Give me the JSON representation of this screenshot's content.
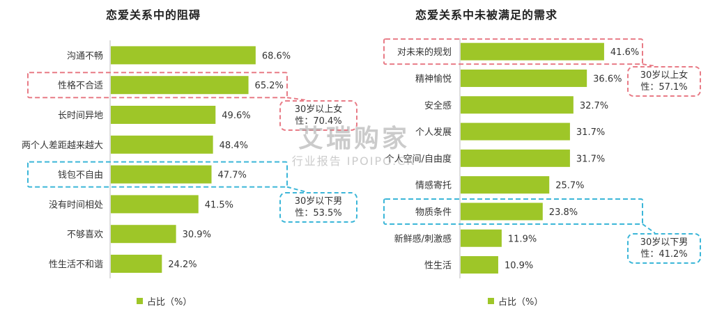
{
  "chart_data": [
    {
      "type": "bar",
      "orientation": "horizontal",
      "title": "恋爱关系中的阻碍",
      "categories": [
        "沟通不畅",
        "性格不合适",
        "长时间异地",
        "两个人差距越来越大",
        "钱包不自由",
        "没有时间相处",
        "不够喜欢",
        "性生活不和谐"
      ],
      "values": [
        68.6,
        65.2,
        49.6,
        48.4,
        47.7,
        41.5,
        30.9,
        24.2
      ],
      "value_labels": [
        "68.6%",
        "65.2%",
        "49.6%",
        "48.4%",
        "47.7%",
        "41.5%",
        "30.9%",
        "24.2%"
      ],
      "legend": "占比（%）",
      "bar_color": "#9ec628",
      "highlights": [
        {
          "category_index": 1,
          "color": "#e87b86",
          "line1": "30岁以上女",
          "line2": "性：70.4%"
        },
        {
          "category_index": 4,
          "color": "#3bb6d8",
          "line1": "30岁以下男",
          "line2": "性：53.5%"
        }
      ]
    },
    {
      "type": "bar",
      "orientation": "horizontal",
      "title": "恋爱关系中未被满足的需求",
      "categories": [
        "对未来的规划",
        "精神愉悦",
        "安全感",
        "个人发展",
        "个人空间/自由度",
        "情感寄托",
        "物质条件",
        "新鲜感/刺激感",
        "性生活"
      ],
      "values": [
        41.6,
        36.6,
        32.7,
        31.7,
        31.7,
        25.7,
        23.8,
        11.9,
        10.9
      ],
      "value_labels": [
        "41.6%",
        "36.6%",
        "32.7%",
        "31.7%",
        "31.7%",
        "25.7%",
        "23.8%",
        "11.9%",
        "10.9%"
      ],
      "legend": "占比（%）",
      "bar_color": "#9ec628",
      "highlights": [
        {
          "category_index": 0,
          "color": "#e87b86",
          "line1": "30岁以上女",
          "line2": "性：57.1%"
        },
        {
          "category_index": 6,
          "color": "#3bb6d8",
          "line1": "30岁以下男",
          "line2": "性：41.2%"
        }
      ]
    }
  ],
  "watermark": {
    "big": "艾瑞购家",
    "small": "行业报告 IPOIPO.CN"
  }
}
